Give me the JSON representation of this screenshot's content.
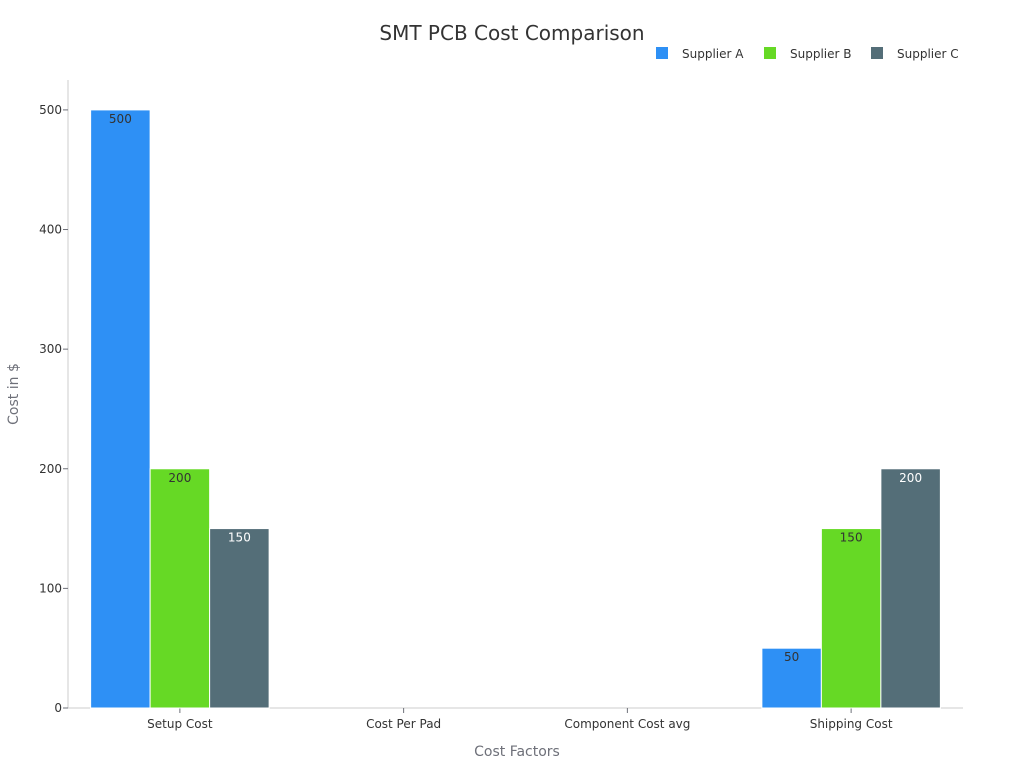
{
  "chart_data": {
    "type": "bar",
    "title": "SMT PCB Cost Comparison",
    "xlabel": "Cost Factors",
    "ylabel": "Cost in $",
    "categories": [
      "Setup Cost",
      "Cost Per Pad",
      "Component Cost avg",
      "Shipping Cost"
    ],
    "series": [
      {
        "name": "Supplier A",
        "color": "#2e90f5",
        "values": [
          500,
          null,
          null,
          50
        ]
      },
      {
        "name": "Supplier B",
        "color": "#66d925",
        "values": [
          200,
          null,
          null,
          150
        ]
      },
      {
        "name": "Supplier C",
        "color": "#546e78",
        "values": [
          150,
          null,
          null,
          200
        ]
      }
    ],
    "ylim": [
      0,
      525
    ],
    "yticks": [
      0,
      100,
      200,
      300,
      400,
      500
    ],
    "legend_position": "top-right",
    "grid": false,
    "label_colors": {
      "Supplier A": "#333333",
      "Supplier B": "#333333",
      "Supplier C": "#ffffff"
    }
  }
}
